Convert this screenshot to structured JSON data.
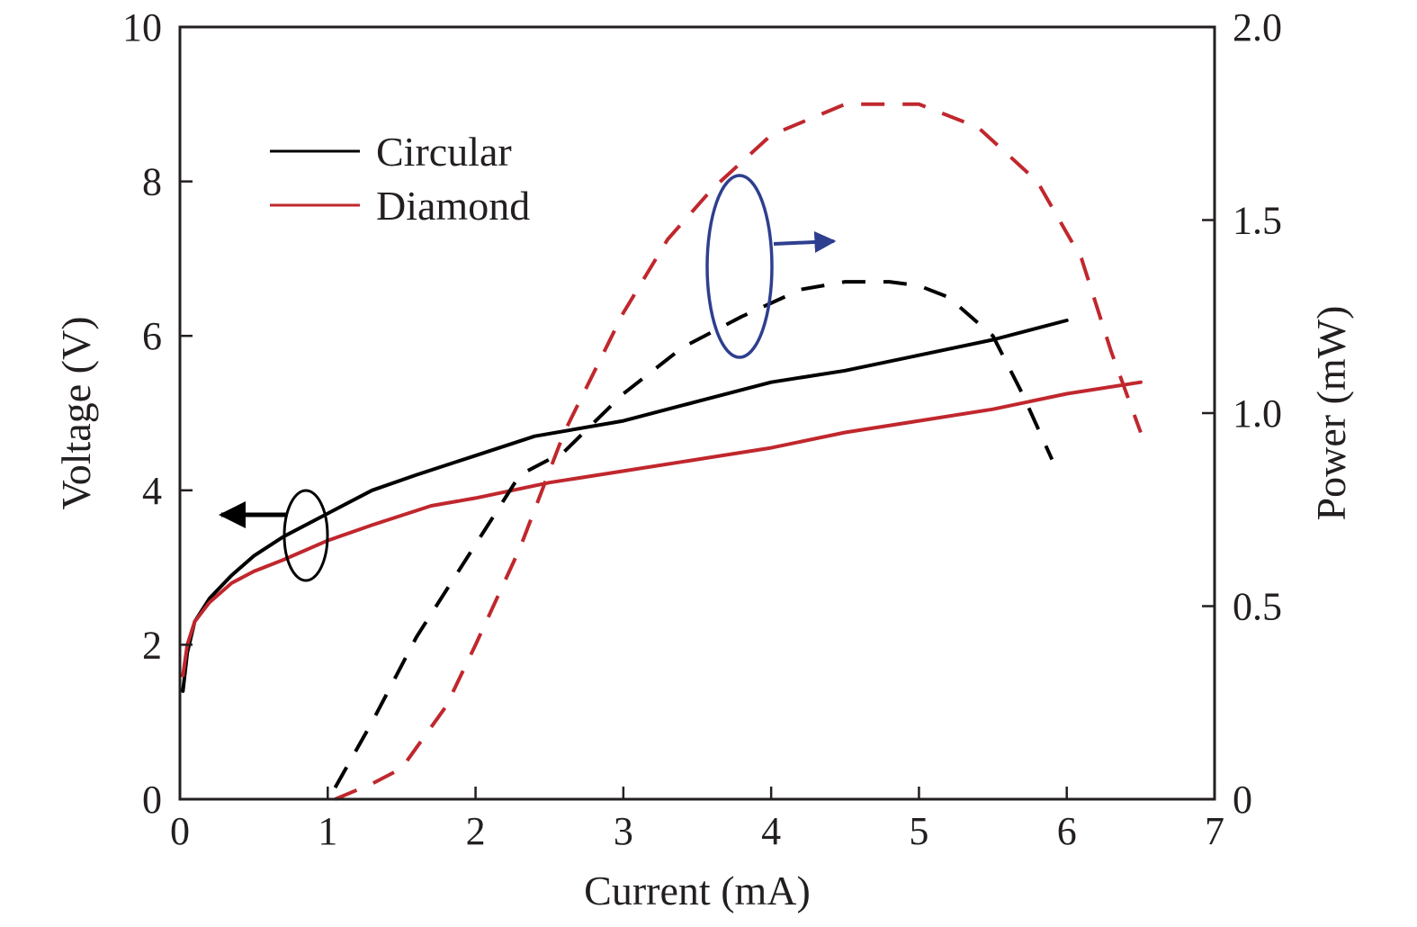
{
  "chart_data": {
    "type": "line",
    "title": "",
    "xlabel": "Current (mA)",
    "ylabel_left": "Voltage (V)",
    "ylabel_right": "Power (mW)",
    "xlim": [
      0,
      7
    ],
    "ylim_left": [
      0,
      10
    ],
    "ylim_right": [
      0,
      2.0
    ],
    "x_ticks": [
      "0",
      "1",
      "2",
      "3",
      "4",
      "5",
      "6",
      "7"
    ],
    "y_left_ticks": [
      "0",
      "2",
      "4",
      "6",
      "8",
      "10"
    ],
    "y_right_ticks": [
      "0",
      "0.5",
      "1.0",
      "1.5",
      "2.0"
    ],
    "grid": false,
    "legend_position": "top-left",
    "legend": [
      {
        "label": "Circular",
        "color": "#000000"
      },
      {
        "label": "Diamond",
        "color": "#c0272d"
      }
    ],
    "series": [
      {
        "name": "Circular",
        "quantity": "voltage",
        "axis": "left",
        "style": "solid",
        "color": "#000000",
        "x": [
          0.02,
          0.05,
          0.1,
          0.2,
          0.35,
          0.5,
          0.7,
          1.0,
          1.3,
          1.6,
          2.0,
          2.4,
          3.0,
          3.5,
          4.0,
          4.5,
          5.0,
          5.5,
          6.0
        ],
        "y": [
          1.4,
          1.9,
          2.3,
          2.6,
          2.9,
          3.15,
          3.4,
          3.7,
          4.0,
          4.2,
          4.45,
          4.7,
          4.9,
          5.15,
          5.4,
          5.55,
          5.75,
          5.95,
          6.2
        ]
      },
      {
        "name": "Diamond",
        "quantity": "voltage",
        "axis": "left",
        "style": "solid",
        "color": "#c0272d",
        "x": [
          0.02,
          0.05,
          0.1,
          0.2,
          0.35,
          0.5,
          0.7,
          1.0,
          1.3,
          1.7,
          2.0,
          2.5,
          3.0,
          3.5,
          4.0,
          4.5,
          5.0,
          5.5,
          6.0,
          6.5
        ],
        "y": [
          1.6,
          2.0,
          2.3,
          2.55,
          2.8,
          2.95,
          3.1,
          3.35,
          3.55,
          3.8,
          3.9,
          4.1,
          4.25,
          4.4,
          4.55,
          4.75,
          4.9,
          5.05,
          5.25,
          5.4
        ]
      },
      {
        "name": "Circular",
        "quantity": "power",
        "axis": "right",
        "style": "dashed",
        "color": "#000000",
        "x": [
          1.05,
          1.3,
          1.6,
          2.0,
          2.3,
          2.6,
          3.0,
          3.4,
          3.8,
          4.2,
          4.5,
          4.8,
          5.0,
          5.2,
          5.5,
          5.7,
          5.9
        ],
        "y": [
          0.03,
          0.2,
          0.42,
          0.66,
          0.84,
          0.9,
          1.05,
          1.17,
          1.25,
          1.32,
          1.34,
          1.34,
          1.33,
          1.3,
          1.2,
          1.05,
          0.88
        ]
      },
      {
        "name": "Diamond",
        "quantity": "power",
        "axis": "right",
        "style": "dashed",
        "color": "#c0272d",
        "x": [
          1.05,
          1.3,
          1.5,
          1.8,
          2.0,
          2.3,
          2.6,
          3.0,
          3.3,
          3.6,
          4.0,
          4.5,
          5.0,
          5.4,
          5.8,
          6.1,
          6.3,
          6.5
        ],
        "y": [
          0.0,
          0.04,
          0.08,
          0.24,
          0.4,
          0.65,
          0.95,
          1.26,
          1.45,
          1.58,
          1.72,
          1.8,
          1.8,
          1.74,
          1.6,
          1.4,
          1.16,
          0.95
        ]
      }
    ],
    "annotations": [
      {
        "type": "ellipse-arrow",
        "meaning": "curves read on left axis",
        "color": "#000000"
      },
      {
        "type": "ellipse-arrow",
        "meaning": "curves read on right axis",
        "color": "#2e3f8f"
      }
    ]
  }
}
